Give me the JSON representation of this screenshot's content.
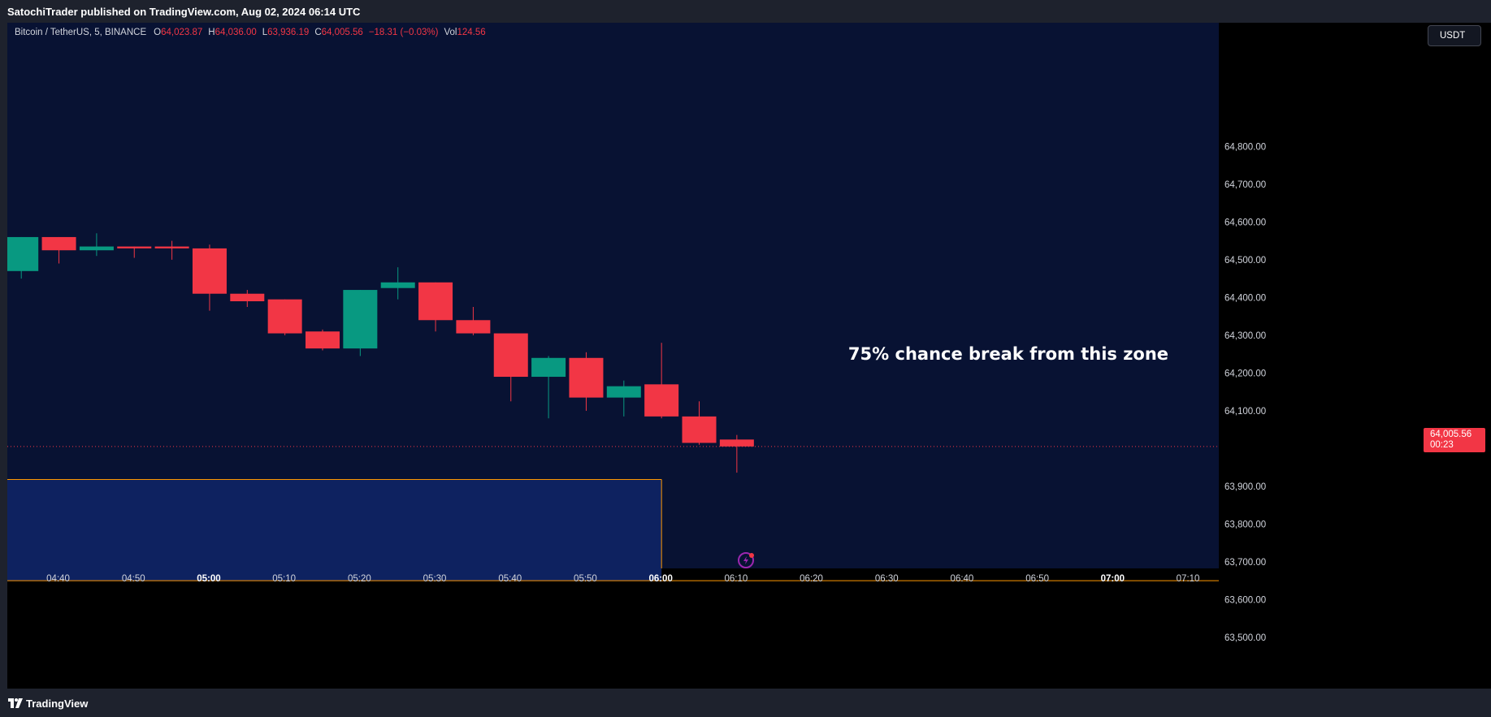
{
  "header": {
    "publisher_line": "SatochiTrader published on TradingView.com, Aug 02, 2024 06:14 UTC"
  },
  "legend": {
    "symbol": "Bitcoin / TetherUS, 5, BINANCE",
    "open_label": "O",
    "open": "64,023.87",
    "high_label": "H",
    "high": "64,036.00",
    "low_label": "L",
    "low": "63,936.19",
    "close_label": "C",
    "close": "64,005.56",
    "change": "−18.31 (−0.03%)",
    "vol_label": "Vol",
    "vol": "124.56"
  },
  "currency_button": "USDT",
  "last_price": {
    "price": "64,005.56",
    "countdown": "00:23"
  },
  "annotation": "75% chance break from this zone",
  "footer": {
    "brand": "TradingView"
  },
  "colors": {
    "up": "#089981",
    "down": "#f23645",
    "background": "#081233",
    "zone_fill": "#0e2260",
    "zone_border": "#ff9800"
  },
  "icons": [
    "flash-icon",
    "tradingview-logo-icon"
  ],
  "chart_data": {
    "type": "candlestick",
    "title": "Bitcoin / TetherUS, 5, BINANCE",
    "interval_minutes": 5,
    "ylim": [
      63490,
      64880
    ],
    "y_ticks": [
      {
        "value": 64800,
        "label": "64,800.00"
      },
      {
        "value": 64700,
        "label": "64,700.00"
      },
      {
        "value": 64600,
        "label": "64,600.00"
      },
      {
        "value": 64500,
        "label": "64,500.00"
      },
      {
        "value": 64400,
        "label": "64,400.00"
      },
      {
        "value": 64300,
        "label": "64,300.00"
      },
      {
        "value": 64200,
        "label": "64,200.00"
      },
      {
        "value": 64100,
        "label": "64,100.00"
      },
      {
        "value": 63900,
        "label": "63,900.00"
      },
      {
        "value": 63800,
        "label": "63,800.00"
      },
      {
        "value": 63700,
        "label": "63,700.00"
      },
      {
        "value": 63600,
        "label": "63,600.00"
      },
      {
        "value": 63500,
        "label": "63,500.00"
      }
    ],
    "x_ticks": [
      {
        "time": "04:40",
        "bold": false
      },
      {
        "time": "04:50",
        "bold": false
      },
      {
        "time": "05:00",
        "bold": true
      },
      {
        "time": "05:10",
        "bold": false
      },
      {
        "time": "05:20",
        "bold": false
      },
      {
        "time": "05:30",
        "bold": false
      },
      {
        "time": "05:40",
        "bold": false
      },
      {
        "time": "05:50",
        "bold": false
      },
      {
        "time": "06:00",
        "bold": true
      },
      {
        "time": "06:10",
        "bold": false
      },
      {
        "time": "06:20",
        "bold": false
      },
      {
        "time": "06:30",
        "bold": false
      },
      {
        "time": "06:40",
        "bold": false
      },
      {
        "time": "06:50",
        "bold": false
      },
      {
        "time": "07:00",
        "bold": true
      },
      {
        "time": "07:10",
        "bold": false
      }
    ],
    "candles": [
      {
        "time": "04:35",
        "open": 64470,
        "high": 64560,
        "low": 64450,
        "close": 64560
      },
      {
        "time": "04:40",
        "open": 64560,
        "high": 64560,
        "low": 64490,
        "close": 64525
      },
      {
        "time": "04:45",
        "open": 64525,
        "high": 64570,
        "low": 64510,
        "close": 64535
      },
      {
        "time": "04:50",
        "open": 64535,
        "high": 64535,
        "low": 64505,
        "close": 64530
      },
      {
        "time": "04:55",
        "open": 64535,
        "high": 64550,
        "low": 64500,
        "close": 64530
      },
      {
        "time": "05:00",
        "open": 64530,
        "high": 64540,
        "low": 64365,
        "close": 64410
      },
      {
        "time": "05:05",
        "open": 64410,
        "high": 64420,
        "low": 64375,
        "close": 64390
      },
      {
        "time": "05:10",
        "open": 64395,
        "high": 64395,
        "low": 64300,
        "close": 64305
      },
      {
        "time": "05:15",
        "open": 64310,
        "high": 64315,
        "low": 64260,
        "close": 64265
      },
      {
        "time": "05:20",
        "open": 64265,
        "high": 64420,
        "low": 64245,
        "close": 64420
      },
      {
        "time": "05:25",
        "open": 64425,
        "high": 64480,
        "low": 64395,
        "close": 64440
      },
      {
        "time": "05:30",
        "open": 64440,
        "high": 64440,
        "low": 64310,
        "close": 64340
      },
      {
        "time": "05:35",
        "open": 64340,
        "high": 64375,
        "low": 64300,
        "close": 64305
      },
      {
        "time": "05:40",
        "open": 64305,
        "high": 64305,
        "low": 64125,
        "close": 64190
      },
      {
        "time": "05:45",
        "open": 64190,
        "high": 64245,
        "low": 64080,
        "close": 64240
      },
      {
        "time": "05:50",
        "open": 64240,
        "high": 64255,
        "low": 64100,
        "close": 64135
      },
      {
        "time": "05:55",
        "open": 64135,
        "high": 64180,
        "low": 64085,
        "close": 64165
      },
      {
        "time": "06:00",
        "open": 64170,
        "high": 64280,
        "low": 64080,
        "close": 64085
      },
      {
        "time": "06:05",
        "open": 64085,
        "high": 64125,
        "low": 64010,
        "close": 64015
      },
      {
        "time": "06:10",
        "open": 64023.87,
        "high": 64036,
        "low": 63936.19,
        "close": 64005.56
      }
    ],
    "last_price": 64005.56,
    "zone": {
      "top": 63918,
      "bottom": 63650,
      "end_time": "06:00"
    }
  }
}
